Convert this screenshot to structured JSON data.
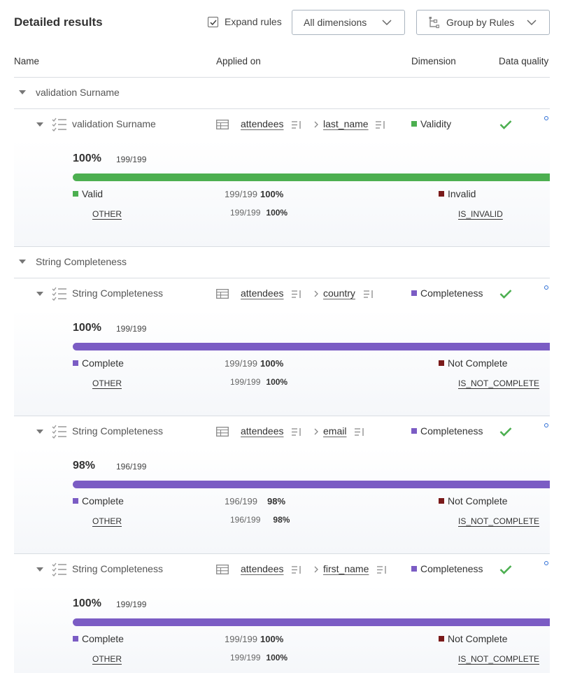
{
  "header": {
    "title": "Detailed results",
    "expand_rules_label": "Expand rules",
    "expand_rules_checked": true,
    "dimension_select": "All dimensions",
    "group_select": "Group by Rules"
  },
  "columns": {
    "name": "Name",
    "applied_on": "Applied on",
    "dimension": "Dimension",
    "data_quality": "Data quality"
  },
  "colors": {
    "validity": "#4caf50",
    "completeness": "#7b5cc4",
    "invalid": "#7a1a1a",
    "check": "#4caf50"
  },
  "groups": [
    {
      "label": "validation Surname",
      "rules": [
        {
          "name": "validation Surname",
          "table": "attendees",
          "column": "last_name",
          "dimension": "Validity",
          "percent": "100%",
          "fraction": "199/199",
          "bar_fill": 1.0,
          "positive": {
            "label": "Valid",
            "count": "199/199",
            "percent": "100%",
            "sub_label": "OTHER",
            "sub_count": "199/199",
            "sub_percent": "100%"
          },
          "negative": {
            "label": "Invalid",
            "sub_label": "IS_INVALID"
          }
        }
      ]
    },
    {
      "label": "String Completeness",
      "rules": [
        {
          "name": "String Completeness",
          "table": "attendees",
          "column": "country",
          "dimension": "Completeness",
          "percent": "100%",
          "fraction": "199/199",
          "bar_fill": 1.0,
          "positive": {
            "label": "Complete",
            "count": "199/199",
            "percent": "100%",
            "sub_label": "OTHER",
            "sub_count": "199/199",
            "sub_percent": "100%"
          },
          "negative": {
            "label": "Not Complete",
            "sub_label": "IS_NOT_COMPLETE"
          }
        },
        {
          "name": "String Completeness",
          "table": "attendees",
          "column": "email",
          "dimension": "Completeness",
          "percent": "98%",
          "fraction": "196/199",
          "bar_fill": 1.0,
          "positive": {
            "label": "Complete",
            "count": "196/199",
            "percent": "98%",
            "sub_label": "OTHER",
            "sub_count": "196/199",
            "sub_percent": "98%"
          },
          "negative": {
            "label": "Not Complete",
            "sub_label": "IS_NOT_COMPLETE"
          }
        },
        {
          "name": "String Completeness",
          "table": "attendees",
          "column": "first_name",
          "dimension": "Completeness",
          "percent": "100%",
          "fraction": "199/199",
          "bar_fill": 1.0,
          "positive": {
            "label": "Complete",
            "count": "199/199",
            "percent": "100%",
            "sub_label": "OTHER",
            "sub_count": "199/199",
            "sub_percent": "100%"
          },
          "negative": {
            "label": "Not Complete",
            "sub_label": "IS_NOT_COMPLETE"
          }
        }
      ]
    }
  ]
}
